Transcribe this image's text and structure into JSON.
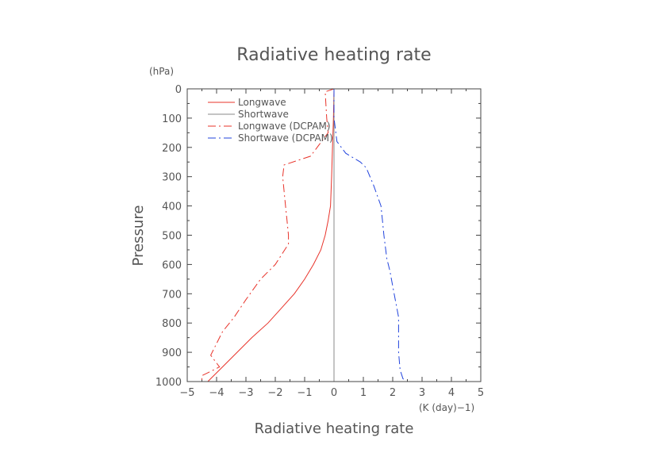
{
  "chart_data": {
    "type": "line",
    "title": "Radiative heating rate",
    "xlabel": "Radiative heating rate",
    "xunit": "(K (day)−1)",
    "ylabel": "Pressure",
    "yunit": "(hPa)",
    "xlim": [
      -5,
      5
    ],
    "ylim": [
      1000,
      0
    ],
    "y_inverted": true,
    "grid": false,
    "legend_position": "top-left",
    "xticks": [
      -5,
      -4,
      -3,
      -2,
      -1,
      0,
      1,
      2,
      3,
      4,
      5
    ],
    "yticks": [
      0,
      100,
      200,
      300,
      400,
      500,
      600,
      700,
      800,
      900,
      1000
    ],
    "series": [
      {
        "name": "Longwave",
        "color": "#e8332a",
        "dash": "solid",
        "points": [
          [
            0,
            0
          ],
          [
            -0.02,
            100
          ],
          [
            -0.05,
            200
          ],
          [
            -0.08,
            300
          ],
          [
            -0.12,
            400
          ],
          [
            -0.2,
            450
          ],
          [
            -0.3,
            500
          ],
          [
            -0.45,
            550
          ],
          [
            -0.7,
            600
          ],
          [
            -1.0,
            650
          ],
          [
            -1.35,
            700
          ],
          [
            -1.8,
            750
          ],
          [
            -2.25,
            800
          ],
          [
            -2.8,
            850
          ],
          [
            -3.3,
            900
          ],
          [
            -3.8,
            950
          ],
          [
            -4.3,
            1000
          ]
        ]
      },
      {
        "name": "Shortwave",
        "color": "#888888",
        "dash": "solid",
        "points": [
          [
            0,
            0
          ],
          [
            0,
            200
          ],
          [
            0,
            400
          ],
          [
            0,
            600
          ],
          [
            0,
            800
          ],
          [
            0,
            1000
          ]
        ]
      },
      {
        "name": "Longwave (DCPAM)",
        "color": "#e8332a",
        "dash": "dashdot",
        "points": [
          [
            0,
            0
          ],
          [
            -0.3,
            10
          ],
          [
            -0.25,
            100
          ],
          [
            -0.2,
            150
          ],
          [
            -0.8,
            230
          ],
          [
            -1.7,
            260
          ],
          [
            -1.75,
            300
          ],
          [
            -1.65,
            400
          ],
          [
            -1.6,
            450
          ],
          [
            -1.55,
            500
          ],
          [
            -1.55,
            530
          ],
          [
            -2.0,
            600
          ],
          [
            -2.5,
            650
          ],
          [
            -3.0,
            720
          ],
          [
            -3.4,
            780
          ],
          [
            -3.8,
            830
          ],
          [
            -4.0,
            870
          ],
          [
            -4.2,
            910
          ],
          [
            -3.9,
            950
          ],
          [
            -4.5,
            980
          ],
          [
            -4.5,
            1000
          ]
        ]
      },
      {
        "name": "Shortwave (DCPAM)",
        "color": "#2244dd",
        "dash": "dashdot",
        "points": [
          [
            0,
            0
          ],
          [
            0,
            100
          ],
          [
            0.1,
            180
          ],
          [
            0.4,
            220
          ],
          [
            0.9,
            250
          ],
          [
            1.1,
            270
          ],
          [
            1.35,
            330
          ],
          [
            1.6,
            400
          ],
          [
            1.65,
            450
          ],
          [
            1.7,
            500
          ],
          [
            1.8,
            580
          ],
          [
            1.9,
            620
          ],
          [
            2.05,
            700
          ],
          [
            2.2,
            780
          ],
          [
            2.2,
            900
          ],
          [
            2.25,
            960
          ],
          [
            2.35,
            990
          ],
          [
            2.45,
            1000
          ]
        ]
      }
    ]
  }
}
